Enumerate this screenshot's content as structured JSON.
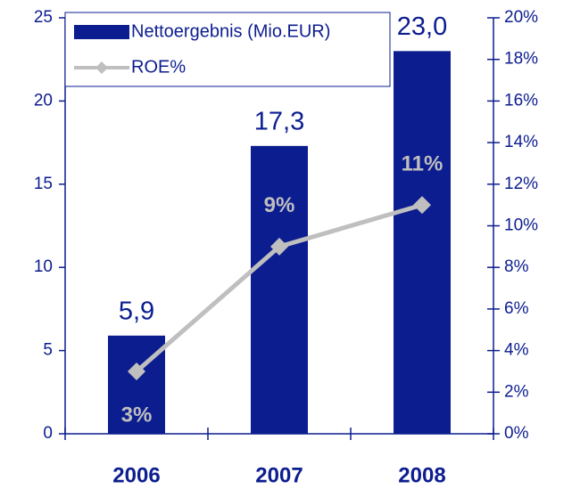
{
  "chart_data": {
    "type": "bar",
    "categories": [
      "2006",
      "2007",
      "2008"
    ],
    "series": [
      {
        "name": "Nettoergebnis (Mio.EUR)",
        "color": "#0c1d8f",
        "values": [
          5.9,
          17.3,
          23.0
        ],
        "value_labels": [
          "5,9",
          "17,3",
          "23,0"
        ]
      },
      {
        "name": "ROE%",
        "color": "#bfbfbf",
        "type": "line",
        "axis": "y2",
        "values": [
          3,
          9,
          11
        ],
        "value_labels": [
          "3%",
          "9%",
          "11%"
        ]
      }
    ],
    "ylim": [
      0,
      25
    ],
    "yticks": [
      0,
      5,
      10,
      15,
      20,
      25
    ],
    "y2lim": [
      0,
      20
    ],
    "y2ticks": [
      {
        "value": 0,
        "label": "0%"
      },
      {
        "value": 2,
        "label": "2%"
      },
      {
        "value": 4,
        "label": "4%"
      },
      {
        "value": 6,
        "label": "6%"
      },
      {
        "value": 8,
        "label": "8%"
      },
      {
        "value": 10,
        "label": "10%"
      },
      {
        "value": 12,
        "label": "12%"
      },
      {
        "value": 14,
        "label": "14%"
      },
      {
        "value": 16,
        "label": "16%"
      },
      {
        "value": 18,
        "label": "18%"
      },
      {
        "value": 20,
        "label": "20%"
      }
    ],
    "legend": "top-left"
  }
}
